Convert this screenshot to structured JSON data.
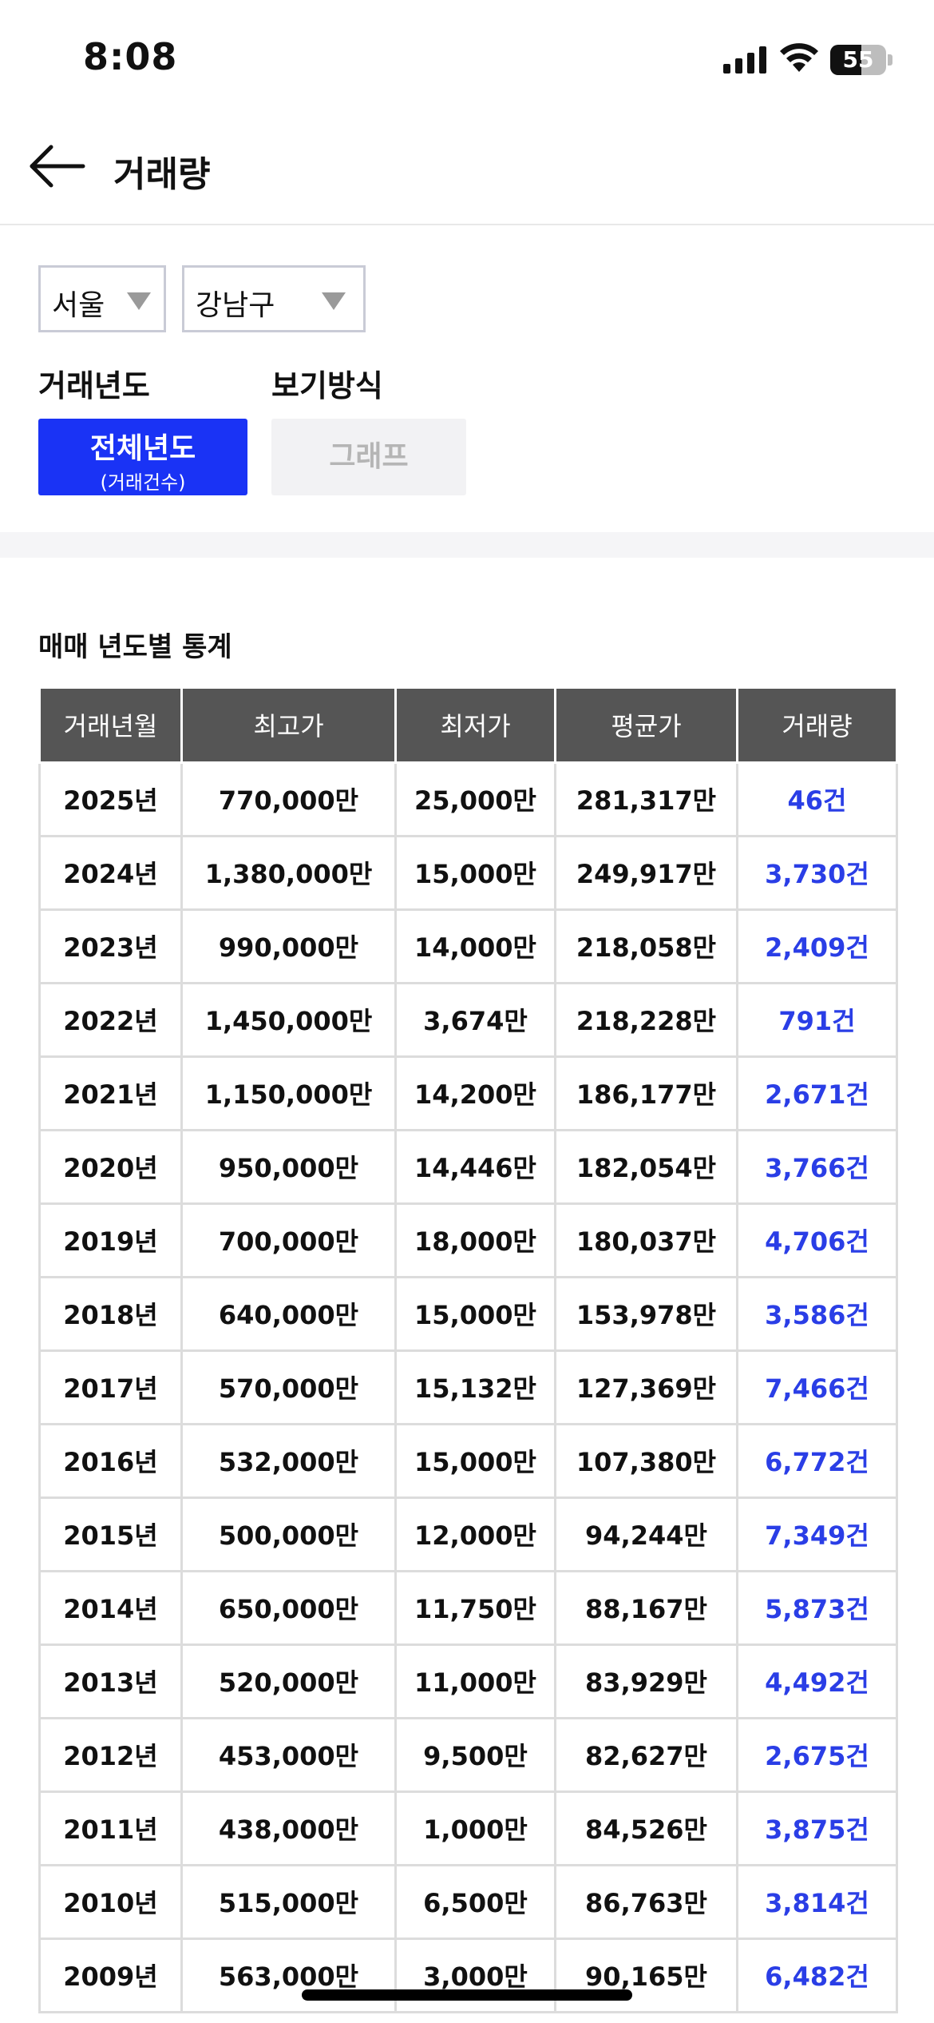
{
  "status_bar": {
    "time": "8:08",
    "battery_level": "55",
    "battery_fraction": 0.55
  },
  "header": {
    "title": "거래량",
    "back_icon": "arrow-left-icon"
  },
  "filters": {
    "region": "서울",
    "district": "강남구",
    "year_label": "거래년도",
    "view_label": "보기방식",
    "all_years_main": "전체년도",
    "all_years_sub": "(거래건수)",
    "graph_label": "그래프"
  },
  "stats": {
    "title": "매매 년도별 통계",
    "columns": [
      "거래년월",
      "최고가",
      "최저가",
      "평균가",
      "거래량"
    ],
    "rows": [
      [
        "2025년",
        "770,000만",
        "25,000만",
        "281,317만",
        "46건"
      ],
      [
        "2024년",
        "1,380,000만",
        "15,000만",
        "249,917만",
        "3,730건"
      ],
      [
        "2023년",
        "990,000만",
        "14,000만",
        "218,058만",
        "2,409건"
      ],
      [
        "2022년",
        "1,450,000만",
        "3,674만",
        "218,228만",
        "791건"
      ],
      [
        "2021년",
        "1,150,000만",
        "14,200만",
        "186,177만",
        "2,671건"
      ],
      [
        "2020년",
        "950,000만",
        "14,446만",
        "182,054만",
        "3,766건"
      ],
      [
        "2019년",
        "700,000만",
        "18,000만",
        "180,037만",
        "4,706건"
      ],
      [
        "2018년",
        "640,000만",
        "15,000만",
        "153,978만",
        "3,586건"
      ],
      [
        "2017년",
        "570,000만",
        "15,132만",
        "127,369만",
        "7,466건"
      ],
      [
        "2016년",
        "532,000만",
        "15,000만",
        "107,380만",
        "6,772건"
      ],
      [
        "2015년",
        "500,000만",
        "12,000만",
        "94,244만",
        "7,349건"
      ],
      [
        "2014년",
        "650,000만",
        "11,750만",
        "88,167만",
        "5,873건"
      ],
      [
        "2013년",
        "520,000만",
        "11,000만",
        "83,929만",
        "4,492건"
      ],
      [
        "2012년",
        "453,000만",
        "9,500만",
        "82,627만",
        "2,675건"
      ],
      [
        "2011년",
        "438,000만",
        "1,000만",
        "84,526만",
        "3,875건"
      ],
      [
        "2010년",
        "515,000만",
        "6,500만",
        "86,763만",
        "3,814건"
      ],
      [
        "2009년",
        "563,000만",
        "3,000만",
        "90,165만",
        "6,482건"
      ]
    ]
  },
  "colors": {
    "accent": "#1a33f5",
    "count_text": "#2a3ee6",
    "header_bg": "#555555"
  }
}
